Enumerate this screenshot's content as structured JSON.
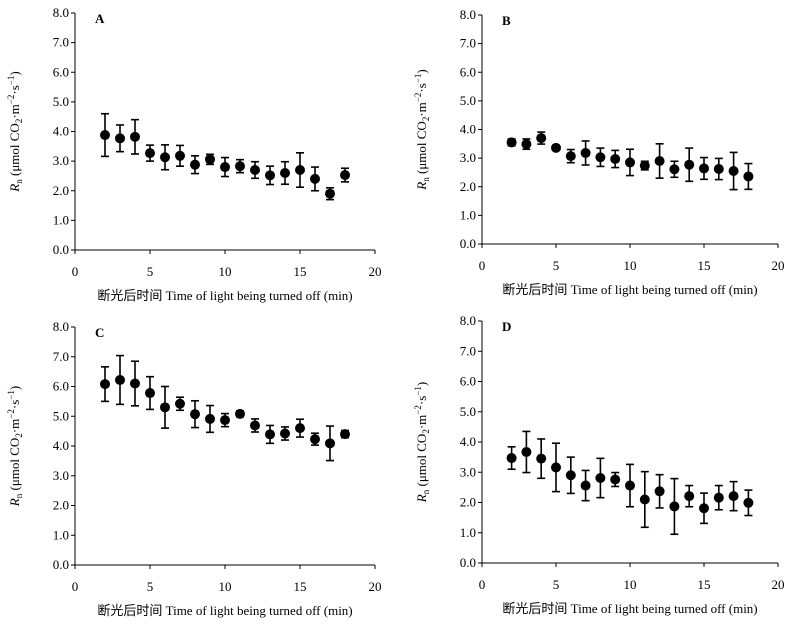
{
  "chart_data": [
    {
      "type": "scatter",
      "panel_label": "A",
      "xlabel": "断光后时间 Time of light being turned off (min)",
      "ylabel": "Rn (μmol CO2·m−2·s−1)",
      "xlim": [
        0,
        20
      ],
      "ylim": [
        0,
        8
      ],
      "xticks": [
        "0",
        "5",
        "10",
        "15",
        "20"
      ],
      "yticks": [
        "0.0",
        "1.0",
        "2.0",
        "3.0",
        "4.0",
        "5.0",
        "6.0",
        "7.0",
        "8.0"
      ],
      "grid": false,
      "legend": "none",
      "series": [
        {
          "x": [
            2,
            3,
            4,
            5,
            6,
            7,
            8,
            9,
            10,
            11,
            12,
            13,
            14,
            15,
            16,
            17,
            18
          ],
          "y": [
            3.88,
            3.77,
            3.82,
            3.27,
            3.13,
            3.18,
            2.88,
            3.06,
            2.8,
            2.83,
            2.7,
            2.52,
            2.6,
            2.7,
            2.4,
            1.9,
            2.53
          ],
          "err": [
            0.72,
            0.45,
            0.58,
            0.27,
            0.42,
            0.35,
            0.3,
            0.17,
            0.32,
            0.22,
            0.28,
            0.31,
            0.38,
            0.58,
            0.4,
            0.2,
            0.23
          ]
        }
      ]
    },
    {
      "type": "scatter",
      "panel_label": "B",
      "xlabel": "断光后时间 Time of light being turned off (min)",
      "ylabel": "Rn (μmol CO2·m−2·s−1)",
      "xlim": [
        0,
        20
      ],
      "ylim": [
        0,
        8
      ],
      "xticks": [
        "0",
        "5",
        "10",
        "15",
        "20"
      ],
      "yticks": [
        "0.0",
        "1.0",
        "2.0",
        "3.0",
        "4.0",
        "5.0",
        "6.0",
        "7.0",
        "8.0"
      ],
      "grid": false,
      "legend": "none",
      "series": [
        {
          "x": [
            2,
            3,
            4,
            5,
            6,
            7,
            8,
            9,
            10,
            11,
            12,
            13,
            14,
            15,
            16,
            17,
            18
          ],
          "y": [
            3.55,
            3.49,
            3.7,
            3.36,
            3.07,
            3.18,
            3.03,
            2.97,
            2.85,
            2.74,
            2.9,
            2.61,
            2.77,
            2.64,
            2.62,
            2.55,
            2.36
          ],
          "err": [
            0.12,
            0.18,
            0.21,
            0.08,
            0.23,
            0.42,
            0.32,
            0.3,
            0.46,
            0.15,
            0.6,
            0.28,
            0.58,
            0.38,
            0.37,
            0.65,
            0.45
          ]
        }
      ]
    },
    {
      "type": "scatter",
      "panel_label": "C",
      "xlabel": "断光后时间 Time of light being turned off (min)",
      "ylabel": "Rn (μmol CO2·m−2·s−1)",
      "xlim": [
        0,
        20
      ],
      "ylim": [
        0,
        8
      ],
      "xticks": [
        "0",
        "5",
        "10",
        "15",
        "20"
      ],
      "yticks": [
        "0.0",
        "1.0",
        "2.0",
        "3.0",
        "4.0",
        "5.0",
        "6.0",
        "7.0",
        "8.0"
      ],
      "grid": false,
      "legend": "none",
      "series": [
        {
          "x": [
            2,
            3,
            4,
            5,
            6,
            7,
            8,
            9,
            10,
            11,
            12,
            13,
            14,
            15,
            16,
            17,
            18
          ],
          "y": [
            6.08,
            6.22,
            6.1,
            5.78,
            5.3,
            5.42,
            5.07,
            4.91,
            4.87,
            5.08,
            4.69,
            4.39,
            4.42,
            4.6,
            4.23,
            4.09,
            4.4
          ],
          "err": [
            0.58,
            0.82,
            0.75,
            0.55,
            0.7,
            0.22,
            0.45,
            0.45,
            0.22,
            0.1,
            0.22,
            0.3,
            0.22,
            0.3,
            0.2,
            0.58,
            0.12
          ]
        }
      ]
    },
    {
      "type": "scatter",
      "panel_label": "D",
      "xlabel": "断光后时间 Time of light being turned off (min)",
      "ylabel": "Rn (μmol CO2·m−2·s−1)",
      "xlim": [
        0,
        20
      ],
      "ylim": [
        0,
        8
      ],
      "xticks": [
        "0",
        "5",
        "10",
        "15",
        "20"
      ],
      "yticks": [
        "0.0",
        "1.0",
        "2.0",
        "3.0",
        "4.0",
        "5.0",
        "6.0",
        "7.0",
        "8.0"
      ],
      "grid": false,
      "legend": "none",
      "series": [
        {
          "x": [
            2,
            3,
            4,
            5,
            6,
            7,
            8,
            9,
            10,
            11,
            12,
            13,
            14,
            15,
            16,
            17,
            18
          ],
          "y": [
            3.47,
            3.67,
            3.45,
            3.16,
            2.9,
            2.56,
            2.81,
            2.76,
            2.56,
            2.1,
            2.37,
            1.87,
            2.21,
            1.81,
            2.16,
            2.21,
            1.99
          ],
          "err": [
            0.37,
            0.68,
            0.65,
            0.8,
            0.6,
            0.5,
            0.65,
            0.23,
            0.7,
            0.92,
            0.55,
            0.92,
            0.35,
            0.5,
            0.4,
            0.48,
            0.42
          ]
        }
      ]
    }
  ]
}
